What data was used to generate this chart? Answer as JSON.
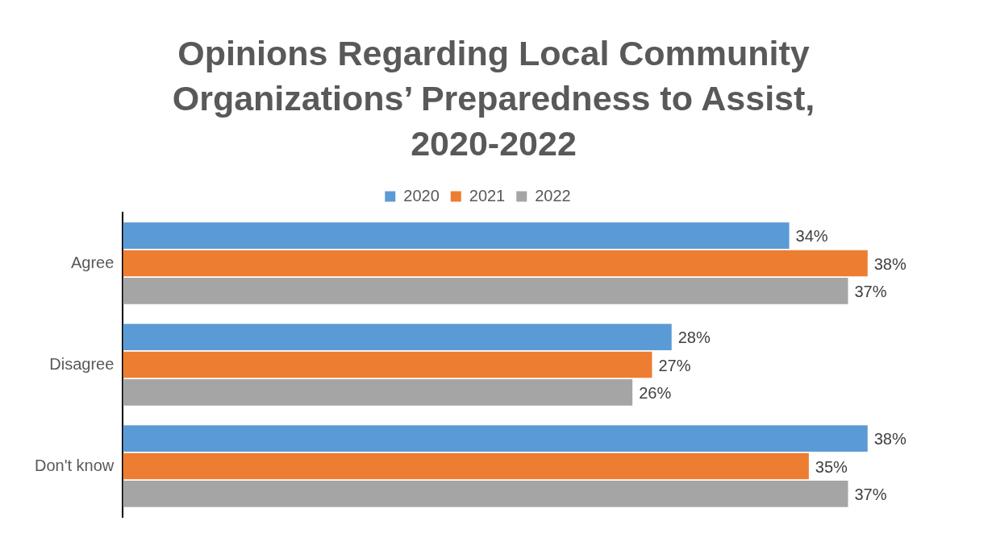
{
  "chart_data": {
    "type": "bar",
    "title": "Opinions Regarding Local Community Organizations’ Preparedness to Assist, 2020-2022",
    "orientation": "horizontal",
    "legend": "top",
    "categories": [
      "Agree",
      "Disagree",
      "Don't know"
    ],
    "series": [
      {
        "name": "2020",
        "color": "#5b9bd5",
        "values": [
          34,
          28,
          38
        ],
        "value_labels": [
          "34%",
          "28%",
          "38%"
        ]
      },
      {
        "name": "2021",
        "color": "#ed7d31",
        "values": [
          38,
          27,
          35
        ],
        "value_labels": [
          "38%",
          "27%",
          "35%"
        ]
      },
      {
        "name": "2022",
        "color": "#a5a5a5",
        "values": [
          37,
          26,
          37
        ],
        "value_labels": [
          "37%",
          "26%",
          "37%"
        ]
      }
    ]
  }
}
